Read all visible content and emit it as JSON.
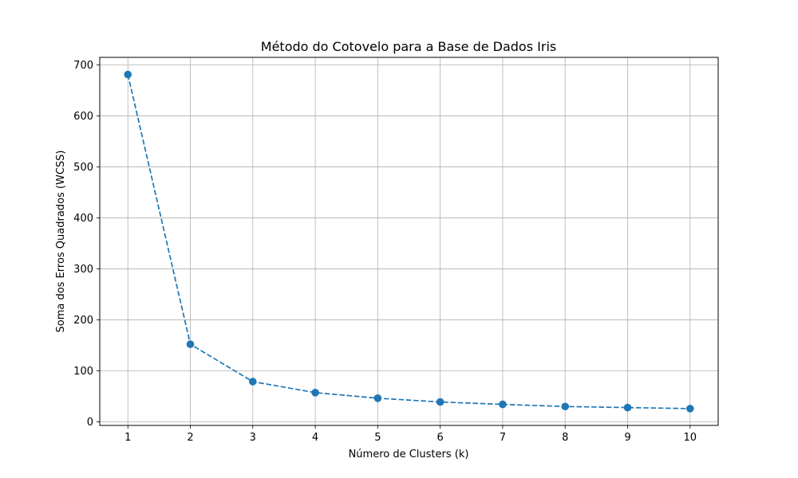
{
  "chart_data": {
    "type": "line",
    "title": "Método do Cotovelo para a Base de Dados Iris",
    "xlabel": "Número de Clusters (k)",
    "ylabel": "Soma dos Erros Quadrados (WCSS)",
    "x": [
      1,
      2,
      3,
      4,
      5,
      6,
      7,
      8,
      9,
      10
    ],
    "series": [
      {
        "values": [
          681.4,
          152.3,
          78.9,
          57.3,
          46.4,
          39.0,
          34.3,
          30.1,
          28.0,
          26.0
        ],
        "color": "#1f77b4",
        "line_style": "dashed",
        "marker": "circle"
      }
    ],
    "xlim": [
      0.55,
      10.45
    ],
    "ylim": [
      -7,
      715
    ],
    "xticks": [
      "1",
      "2",
      "3",
      "4",
      "5",
      "6",
      "7",
      "8",
      "9",
      "10"
    ],
    "yticks": [
      "0",
      "100",
      "200",
      "300",
      "400",
      "500",
      "600",
      "700"
    ],
    "grid": true
  }
}
